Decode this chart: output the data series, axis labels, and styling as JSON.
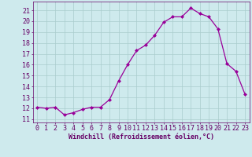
{
  "x": [
    0,
    1,
    2,
    3,
    4,
    5,
    6,
    7,
    8,
    9,
    10,
    11,
    12,
    13,
    14,
    15,
    16,
    17,
    18,
    19,
    20,
    21,
    22,
    23
  ],
  "y": [
    12.1,
    12.0,
    12.1,
    11.4,
    11.6,
    11.9,
    12.1,
    12.1,
    12.8,
    14.5,
    16.0,
    17.3,
    17.8,
    18.7,
    19.9,
    20.4,
    20.4,
    21.2,
    20.7,
    20.4,
    19.3,
    16.1,
    15.4,
    13.3
  ],
  "line_color": "#990099",
  "marker": "D",
  "markersize": 2.0,
  "linewidth": 0.9,
  "background_color": "#ceeaed",
  "grid_color": "#aacccc",
  "xlabel": "Windchill (Refroidissement éolien,°C)",
  "xlabel_fontsize": 6.0,
  "xtick_labels": [
    "0",
    "1",
    "2",
    "3",
    "4",
    "5",
    "6",
    "7",
    "8",
    "9",
    "10",
    "11",
    "12",
    "13",
    "14",
    "15",
    "16",
    "17",
    "18",
    "19",
    "20",
    "21",
    "22",
    "23"
  ],
  "ytick_values": [
    11,
    12,
    13,
    14,
    15,
    16,
    17,
    18,
    19,
    20,
    21
  ],
  "ylim": [
    10.7,
    21.8
  ],
  "xlim": [
    -0.5,
    23.5
  ],
  "tick_fontsize": 6.0,
  "tick_color": "#660066"
}
